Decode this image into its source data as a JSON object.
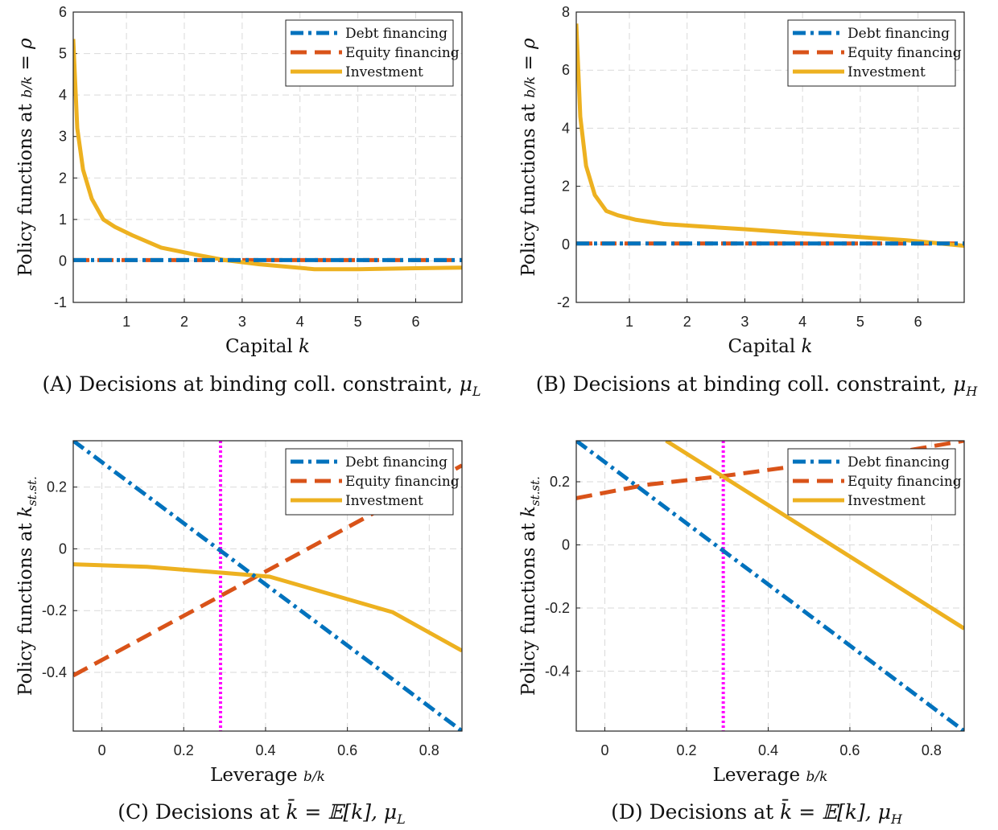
{
  "colors": {
    "debt": "#0072BD",
    "equity": "#D95319",
    "investment": "#EDB120",
    "marker_line": "#FF00FF",
    "grid": "#d9d9d9",
    "axis": "#222222"
  },
  "legend": {
    "entries": [
      "Debt financing",
      "Equity financing",
      "Investment"
    ],
    "placement": "top-right"
  },
  "panels": [
    {
      "caption_letter": "(A)",
      "caption_text": "Decisions at binding coll. constraint,",
      "caption_math": "μ",
      "caption_sub": "L"
    },
    {
      "caption_letter": "(B)",
      "caption_text": "Decisions at binding coll. constraint,",
      "caption_math": "μ",
      "caption_sub": "H"
    },
    {
      "caption_letter": "(C)",
      "caption_text": "Decisions at",
      "caption_math": "k̄ = 𝔼[k],  μ",
      "caption_sub": "L"
    },
    {
      "caption_letter": "(D)",
      "caption_text": "Decisions at",
      "caption_math": "k̄ = 𝔼[k],  μ",
      "caption_sub": "H"
    }
  ],
  "chart_data": [
    {
      "type": "line",
      "xlabel": "Capital k",
      "ylabel": "Policy functions at b/k = ρ",
      "xlim": [
        0.08,
        6.8
      ],
      "ylim": [
        -1,
        6
      ],
      "xticks": [
        1,
        2,
        3,
        4,
        5,
        6
      ],
      "yticks": [
        -1,
        0,
        1,
        2,
        3,
        4,
        5,
        6
      ],
      "grid": true,
      "series": [
        {
          "name": "Debt financing",
          "style": "dashdot",
          "x": [
            0.08,
            6.8
          ],
          "y": [
            0.02,
            0.02
          ]
        },
        {
          "name": "Equity financing",
          "style": "dashed",
          "x": [
            0.08,
            6.8
          ],
          "y": [
            0.02,
            0.02
          ]
        },
        {
          "name": "Investment",
          "style": "solid",
          "x": [
            0.08,
            0.15,
            0.25,
            0.4,
            0.6,
            0.8,
            1.1,
            1.6,
            2.2,
            2.7,
            3.3,
            4.25,
            5.0,
            5.8,
            6.8
          ],
          "y": [
            5.35,
            3.2,
            2.2,
            1.5,
            1.0,
            0.82,
            0.62,
            0.32,
            0.15,
            0.02,
            -0.08,
            -0.2,
            -0.2,
            -0.18,
            -0.16
          ]
        }
      ]
    },
    {
      "type": "line",
      "xlabel": "Capital k",
      "ylabel": "Policy functions at b/k = ρ",
      "xlim": [
        0.08,
        6.8
      ],
      "ylim": [
        -2,
        8
      ],
      "xticks": [
        1,
        2,
        3,
        4,
        5,
        6
      ],
      "yticks": [
        -2,
        0,
        2,
        4,
        6,
        8
      ],
      "grid": true,
      "series": [
        {
          "name": "Debt financing",
          "style": "dashdot",
          "x": [
            0.08,
            6.8
          ],
          "y": [
            0.03,
            0.03
          ]
        },
        {
          "name": "Equity financing",
          "style": "dashed",
          "x": [
            0.08,
            6.8
          ],
          "y": [
            0.03,
            0.03
          ]
        },
        {
          "name": "Investment",
          "style": "solid",
          "x": [
            0.08,
            0.15,
            0.25,
            0.4,
            0.6,
            0.8,
            1.1,
            1.6,
            2.2,
            3.0,
            4.0,
            5.0,
            5.8,
            6.8
          ],
          "y": [
            7.6,
            4.4,
            2.7,
            1.7,
            1.15,
            1.0,
            0.85,
            0.7,
            0.62,
            0.52,
            0.38,
            0.25,
            0.14,
            -0.05
          ]
        }
      ]
    },
    {
      "type": "line",
      "xlabel": "Leverage b/k",
      "ylabel": "Policy functions at k_st.st.",
      "xlim": [
        -0.07,
        0.88
      ],
      "ylim": [
        -0.59,
        0.35
      ],
      "xticks": [
        0,
        0.2,
        0.4,
        0.6,
        0.8
      ],
      "yticks": [
        -0.4,
        -0.2,
        0,
        0.2
      ],
      "grid": true,
      "vline_x": 0.29,
      "series": [
        {
          "name": "Debt financing",
          "style": "dashdot",
          "x": [
            -0.07,
            0.88
          ],
          "y": [
            0.35,
            -0.59
          ]
        },
        {
          "name": "Equity financing",
          "style": "dashed",
          "x": [
            -0.07,
            0.88
          ],
          "y": [
            -0.41,
            0.27
          ]
        },
        {
          "name": "Investment",
          "style": "solid",
          "x": [
            -0.07,
            0.11,
            0.3,
            0.41,
            0.71,
            0.88
          ],
          "y": [
            -0.05,
            -0.058,
            -0.078,
            -0.09,
            -0.205,
            -0.33
          ]
        }
      ]
    },
    {
      "type": "line",
      "xlabel": "Leverage b/k",
      "ylabel": "Policy functions at k_st.st.",
      "xlim": [
        -0.07,
        0.88
      ],
      "ylim": [
        -0.59,
        0.33
      ],
      "xticks": [
        0,
        0.2,
        0.4,
        0.6,
        0.8
      ],
      "yticks": [
        -0.4,
        -0.2,
        0,
        0.2
      ],
      "grid": true,
      "vline_x": 0.29,
      "series": [
        {
          "name": "Debt financing",
          "style": "dashdot",
          "x": [
            -0.07,
            0.88
          ],
          "y": [
            0.33,
            -0.59
          ]
        },
        {
          "name": "Equity financing",
          "style": "dashed",
          "x": [
            -0.07,
            0.1,
            0.3,
            0.5,
            0.7,
            0.88
          ],
          "y": [
            0.148,
            0.19,
            0.22,
            0.255,
            0.29,
            0.33
          ]
        },
        {
          "name": "Investment",
          "style": "solid",
          "x": [
            0.15,
            0.88
          ],
          "y": [
            0.33,
            -0.265
          ]
        }
      ]
    }
  ]
}
